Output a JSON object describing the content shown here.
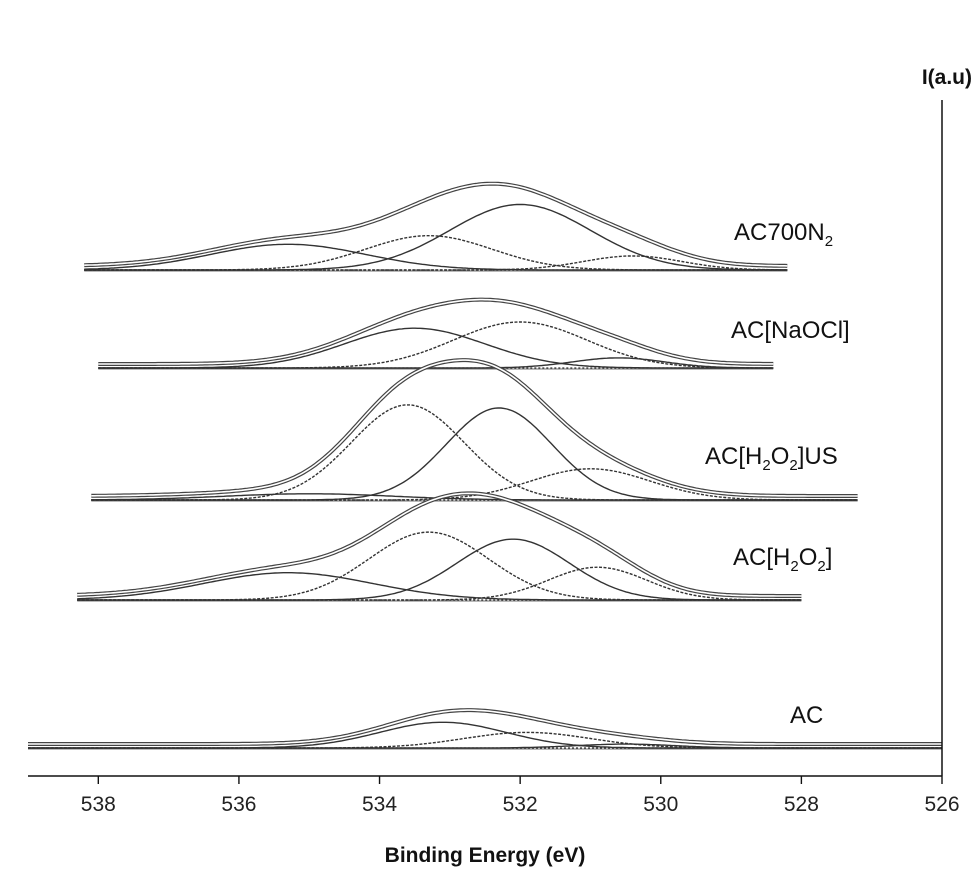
{
  "chart_data": {
    "type": "line",
    "xlabel": "Binding Energy (eV)",
    "ylabel": "I(a.u)",
    "x_ticks": [
      538,
      536,
      534,
      532,
      530,
      528,
      526
    ],
    "x_range": [
      539,
      526
    ],
    "x_reversed": true,
    "grid": false,
    "series": [
      {
        "name": "AC700N2",
        "label": {
          "base": "AC700N",
          "sub": "2"
        },
        "x_extent": [
          538.2,
          528.2
        ],
        "components": [
          {
            "center": 535.3,
            "height": 0.33,
            "sigma": 1.1
          },
          {
            "center": 533.3,
            "height": 0.44,
            "sigma": 0.9
          },
          {
            "center": 532.0,
            "height": 0.84,
            "sigma": 1.0
          },
          {
            "center": 530.4,
            "height": 0.18,
            "sigma": 0.7
          }
        ]
      },
      {
        "name": "AC[NaOCl]",
        "label": {
          "base": "AC[NaOCl]",
          "sub": ""
        },
        "x_extent": [
          538.0,
          528.4
        ],
        "components": [
          {
            "center": 533.5,
            "height": 0.51,
            "sigma": 1.0
          },
          {
            "center": 532.0,
            "height": 0.59,
            "sigma": 0.95
          },
          {
            "center": 530.6,
            "height": 0.13,
            "sigma": 0.65
          }
        ]
      },
      {
        "name": "AC[H2O2]US",
        "label": {
          "base": "AC[H",
          "sub": "2",
          "mid": "O",
          "sub2": "2",
          "tail": "]US"
        },
        "x_extent": [
          538.1,
          527.2
        ],
        "components": [
          {
            "center": 535.0,
            "height": 0.08,
            "sigma": 1.2
          },
          {
            "center": 533.6,
            "height": 1.22,
            "sigma": 0.8
          },
          {
            "center": 532.3,
            "height": 1.18,
            "sigma": 0.75
          },
          {
            "center": 531.0,
            "height": 0.4,
            "sigma": 0.85
          }
        ]
      },
      {
        "name": "AC[H2O2]",
        "label": {
          "base": "AC[H",
          "sub": "2",
          "mid": "O",
          "sub2": "2",
          "tail": "]"
        },
        "x_extent": [
          538.3,
          528.0
        ],
        "components": [
          {
            "center": 535.3,
            "height": 0.35,
            "sigma": 1.2
          },
          {
            "center": 533.3,
            "height": 0.87,
            "sigma": 0.85
          },
          {
            "center": 532.1,
            "height": 0.78,
            "sigma": 0.8
          },
          {
            "center": 530.9,
            "height": 0.42,
            "sigma": 0.7
          }
        ]
      },
      {
        "name": "AC",
        "label": {
          "base": "AC",
          "sub": ""
        },
        "x_extent": [
          539.0,
          526.0
        ],
        "components": [
          {
            "center": 533.1,
            "height": 0.33,
            "sigma": 0.9
          },
          {
            "center": 531.9,
            "height": 0.2,
            "sigma": 0.9
          },
          {
            "center": 530.5,
            "height": 0.05,
            "sigma": 0.7
          }
        ]
      }
    ]
  }
}
